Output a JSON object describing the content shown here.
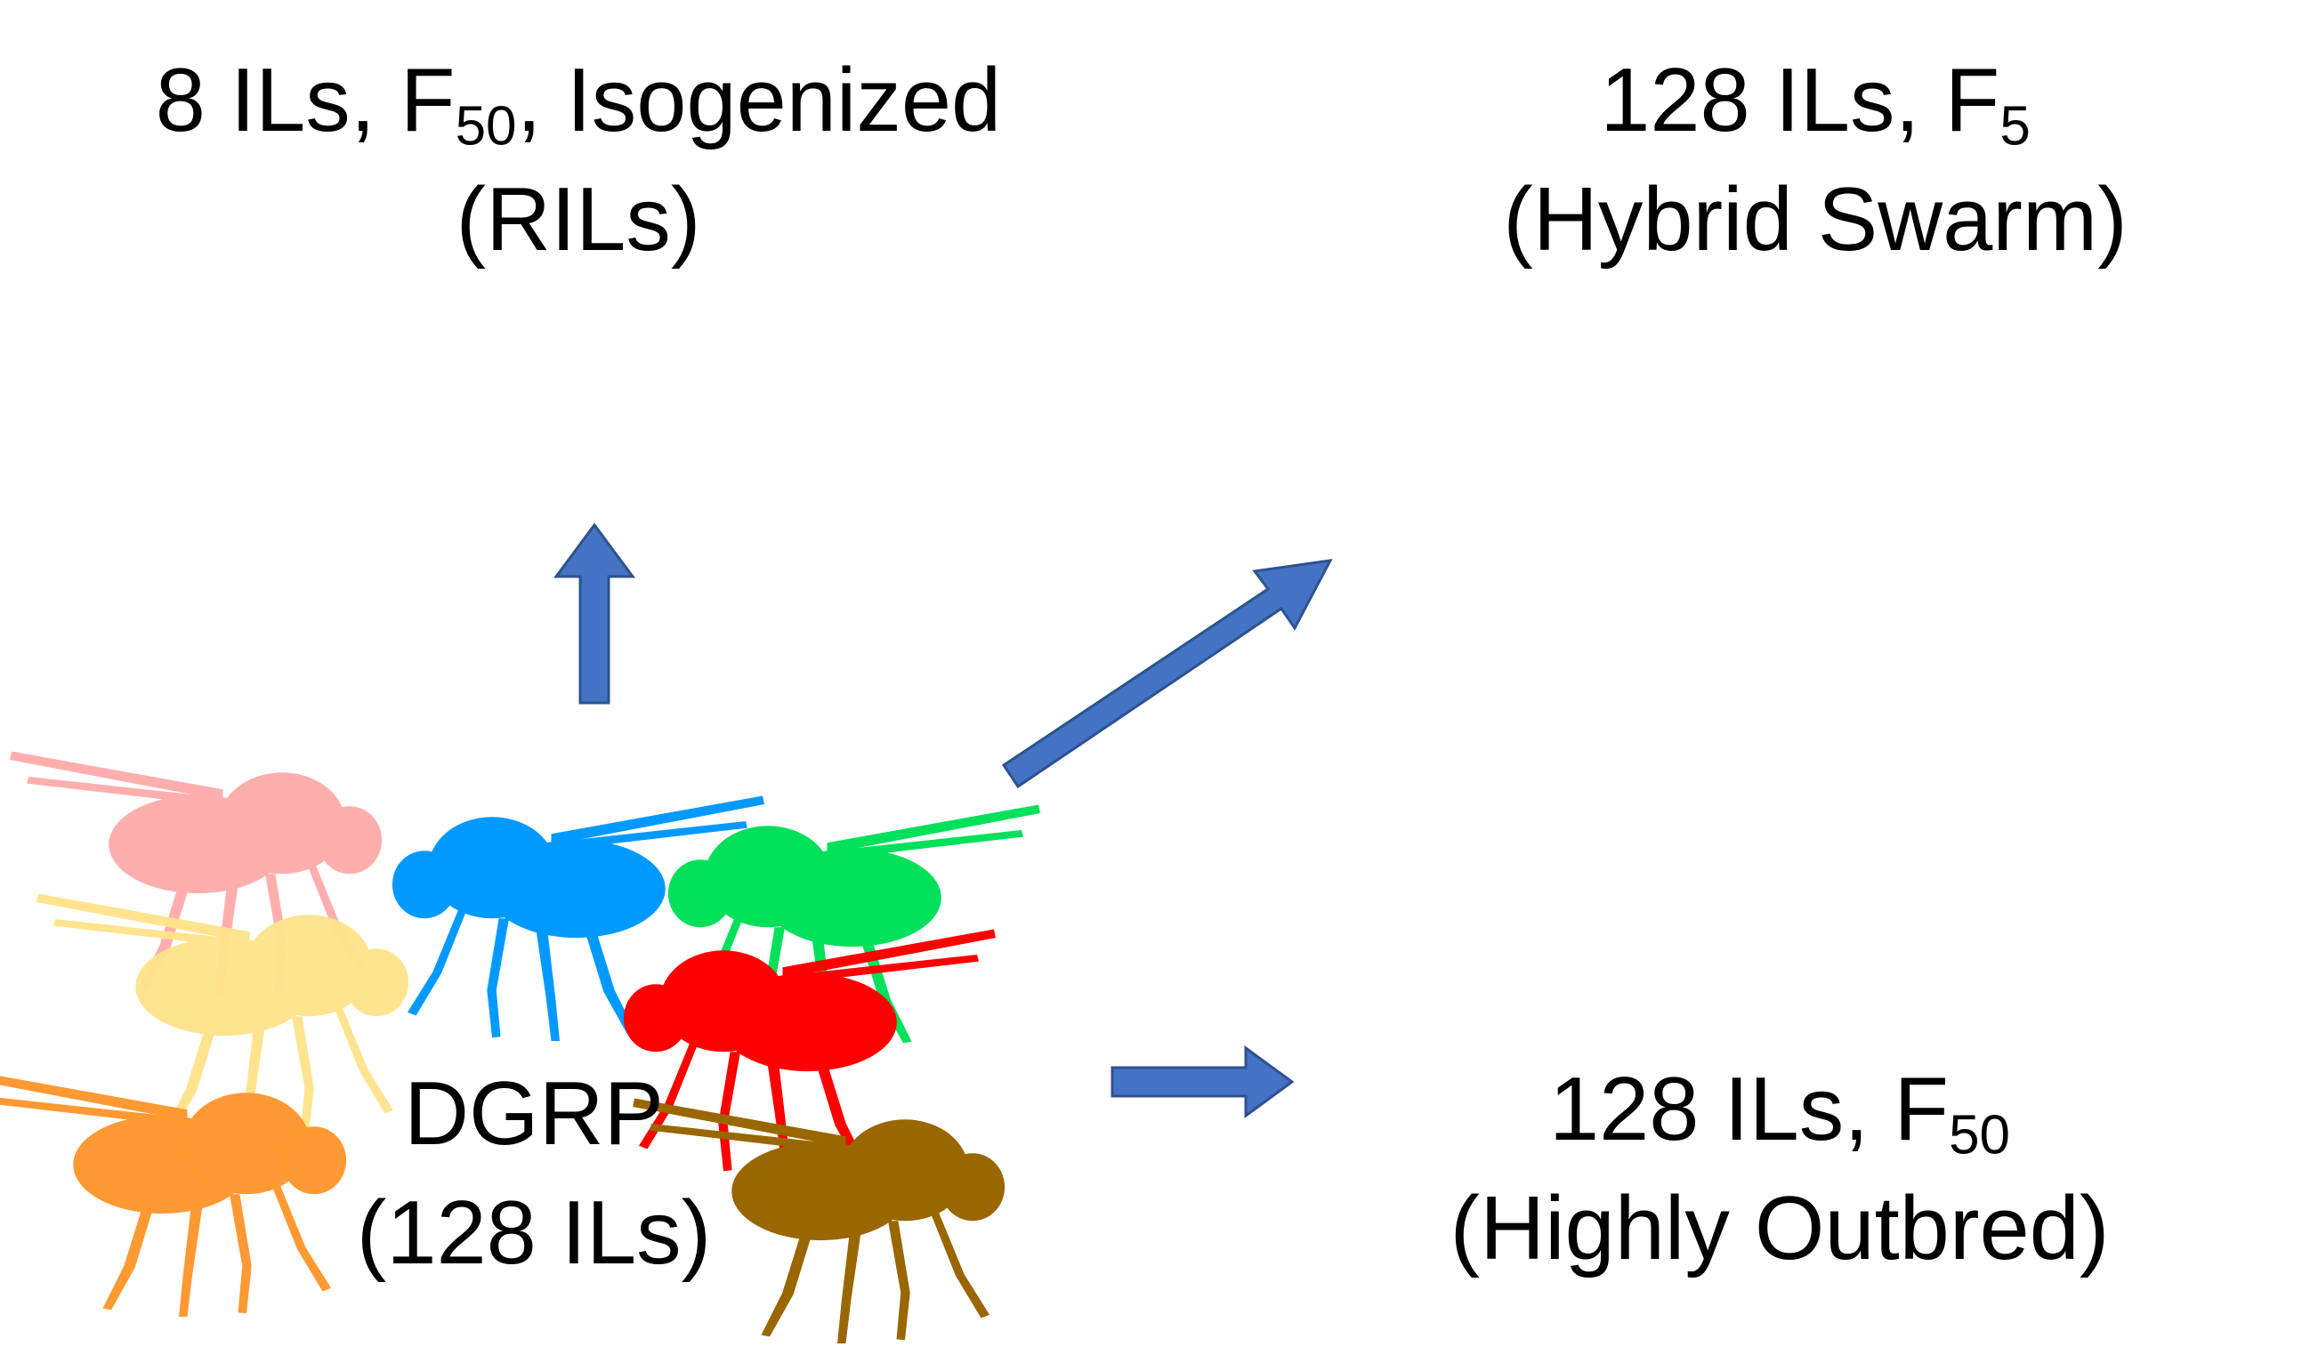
{
  "labels": {
    "rils": {
      "line1_main": "8 ILs, F",
      "line1_sub": "50",
      "line1_rest": ", Isogenized",
      "line2": "(RILs)"
    },
    "hybrid": {
      "line1_main": "128 ILs, F",
      "line1_sub": "5",
      "line2": "(Hybrid Swarm)"
    },
    "outbred": {
      "line1_main": "128 ILs, F",
      "line1_sub": "50",
      "line2": "(Highly Outbred)"
    },
    "dgrp": {
      "line1": "DGRP",
      "line2": "(128 ILs)"
    }
  },
  "colors": {
    "arrow": "#4472C4",
    "palette": [
      "#FFAAAA",
      "#FFE38A",
      "#FF9933",
      "#0099FF",
      "#00E05A",
      "#FF0000",
      "#996600",
      "#66CC33",
      "#6666CC",
      "#FFCCEE",
      "#FFFF00",
      "#0066CC"
    ]
  },
  "parent_flies": [
    {
      "name": "fly-pink",
      "color": "#FFAAAA"
    },
    {
      "name": "fly-yellow",
      "color": "#FFE38A"
    },
    {
      "name": "fly-orange",
      "color": "#FF9933"
    },
    {
      "name": "fly-blue",
      "color": "#0099FF"
    },
    {
      "name": "fly-green",
      "color": "#00E05A"
    },
    {
      "name": "fly-red",
      "color": "#FF0000"
    },
    {
      "name": "fly-brown",
      "color": "#996600"
    }
  ]
}
